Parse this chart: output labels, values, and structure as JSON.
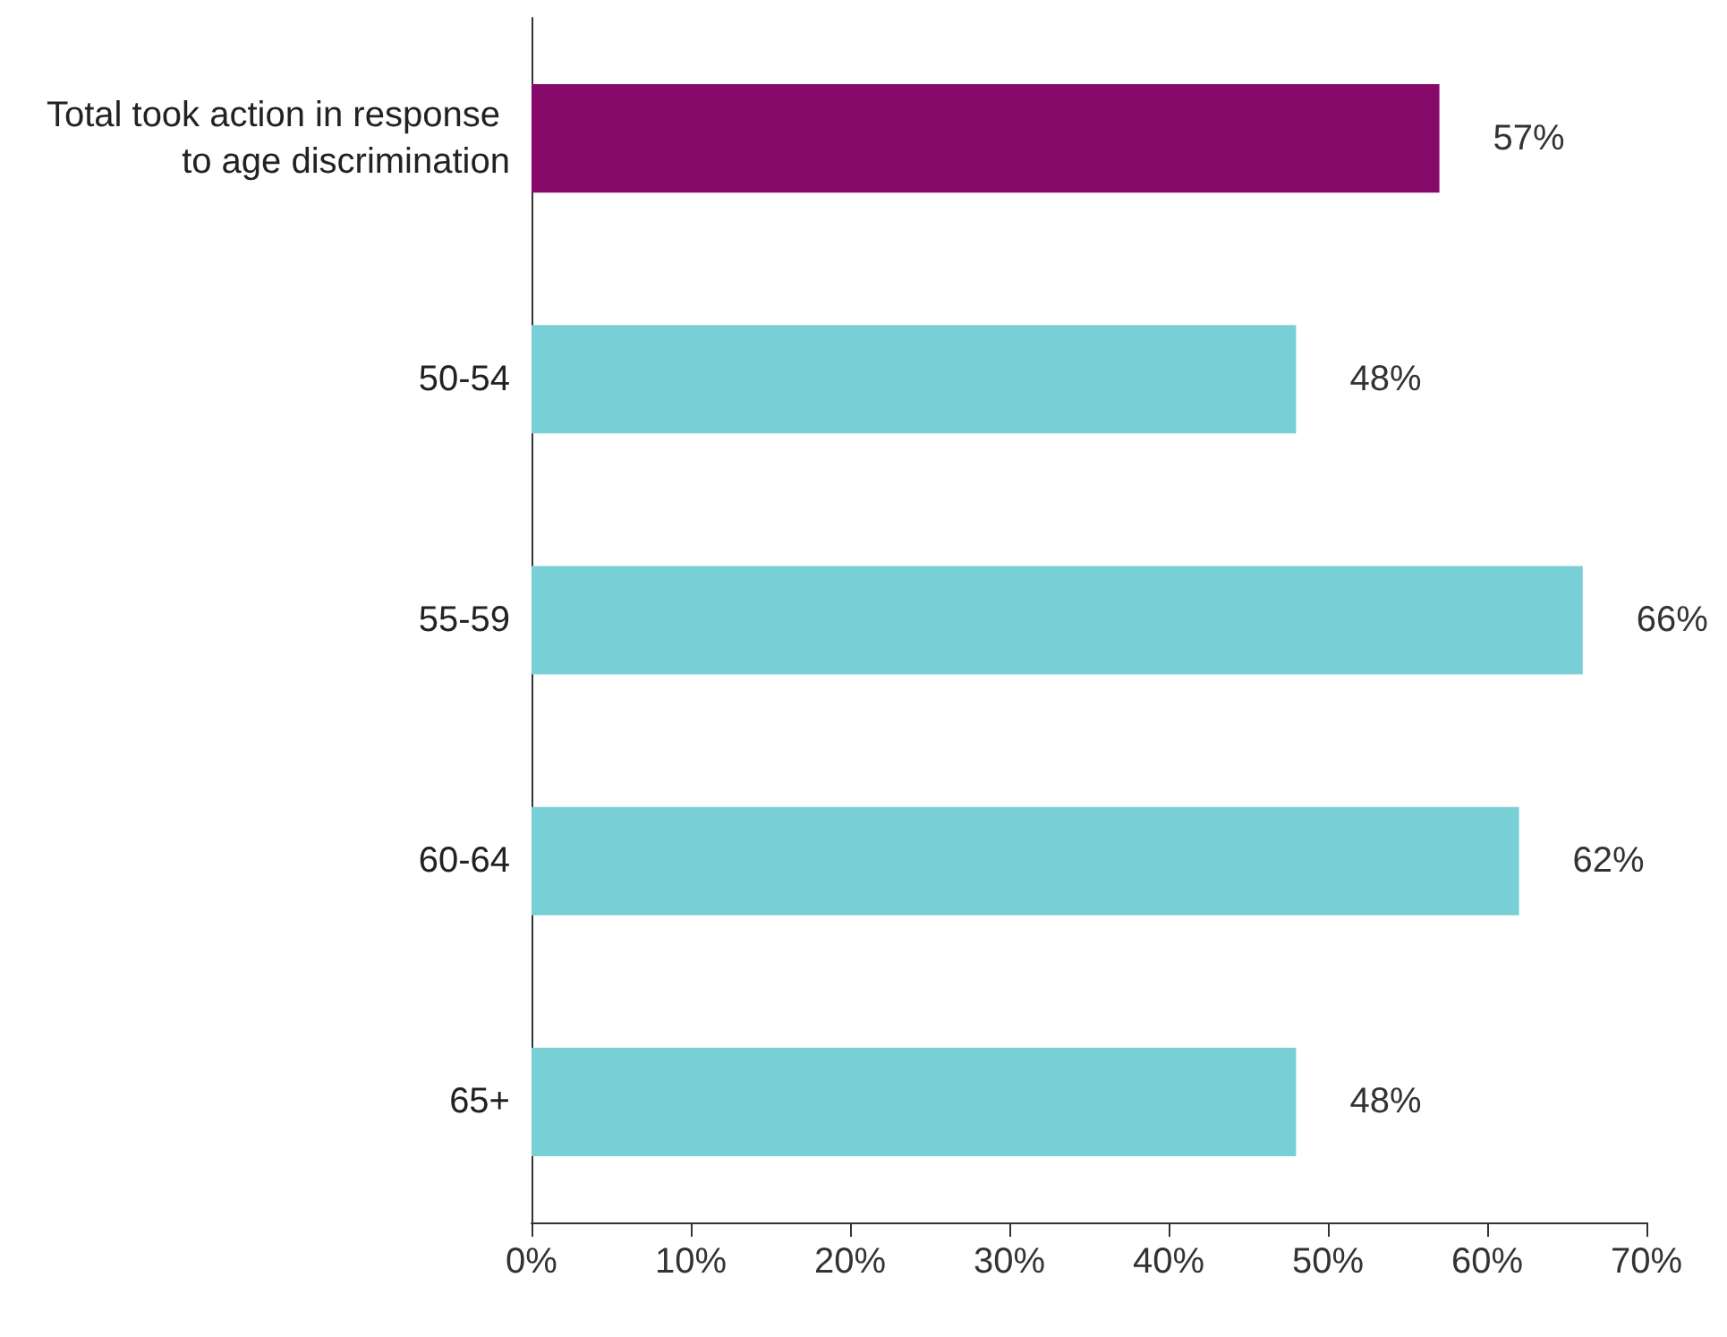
{
  "chart_data": {
    "type": "bar",
    "orientation": "horizontal",
    "categories": [
      "Total took action in response to age discrimination",
      "50-54",
      "55-59",
      "60-64",
      "65+"
    ],
    "values": [
      57,
      48,
      66,
      62,
      48
    ],
    "colors": [
      "#870a6b",
      "#78cfd6",
      "#78cfd6",
      "#78cfd6",
      "#78cfd6"
    ],
    "value_labels": [
      "57%",
      "48%",
      "66%",
      "62%",
      "48%"
    ],
    "xlim": [
      0,
      70
    ],
    "xticks": [
      {
        "value": 0,
        "label": "0%"
      },
      {
        "value": 10,
        "label": "10%"
      },
      {
        "value": 20,
        "label": "20%"
      },
      {
        "value": 30,
        "label": "30%"
      },
      {
        "value": 40,
        "label": "40%"
      },
      {
        "value": 50,
        "label": "50%"
      },
      {
        "value": 60,
        "label": "60%"
      },
      {
        "value": 70,
        "label": "70%"
      }
    ],
    "grid": false
  }
}
